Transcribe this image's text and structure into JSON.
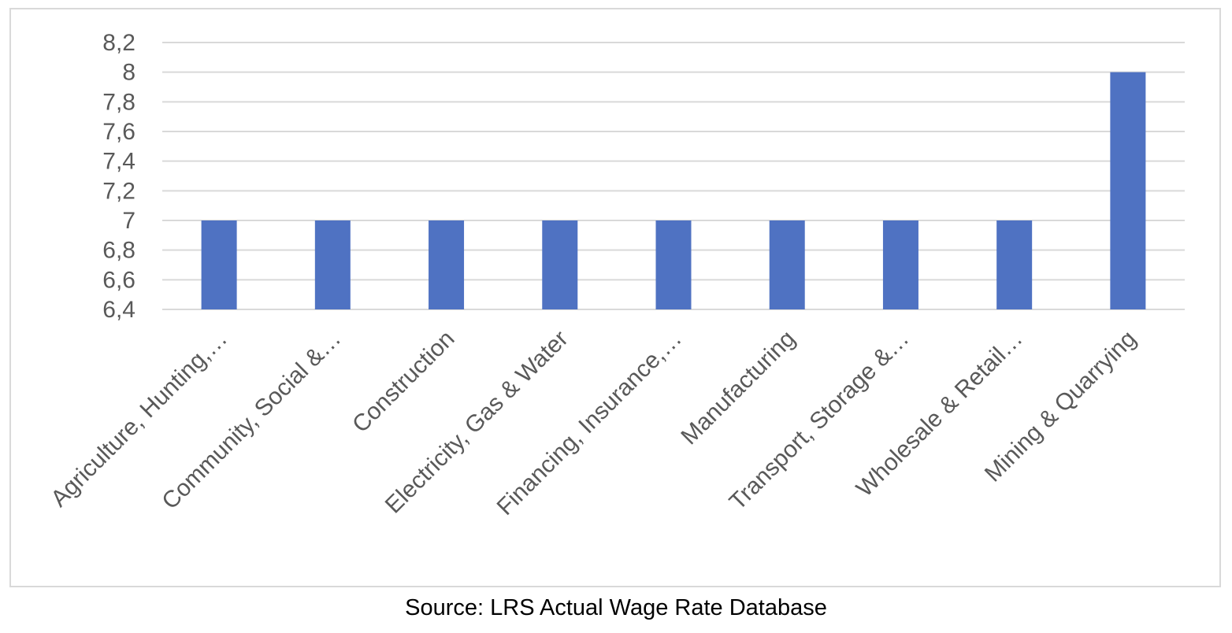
{
  "chart_data": {
    "type": "bar",
    "title": "",
    "xlabel": "",
    "ylabel": "",
    "categories": [
      "Agriculture, Hunting,…",
      "Community, Social &…",
      "Construction",
      "Electricity, Gas & Water",
      "Financing, Insurance,…",
      "Manufacturing",
      "Transport, Storage &…",
      "Wholesale & Retail…",
      "Mining & Quarrying"
    ],
    "values": [
      7,
      7,
      7,
      7,
      7,
      7,
      7,
      7,
      8
    ],
    "ylim": [
      6.4,
      8.2
    ],
    "yticks": [
      6.4,
      6.6,
      6.8,
      7,
      7.2,
      7.4,
      7.6,
      7.8,
      8,
      8.2
    ],
    "ytick_labels": [
      "6,4",
      "6,6",
      "6,8",
      "7",
      "7,2",
      "7,4",
      "7,6",
      "7,8",
      "8",
      "8,2"
    ],
    "grid": true,
    "legend": "none",
    "bar_color": "#4f72c2",
    "grid_color": "#d9d9d9",
    "label_color": "#595959"
  },
  "caption": "Source: LRS Actual Wage Rate Database"
}
